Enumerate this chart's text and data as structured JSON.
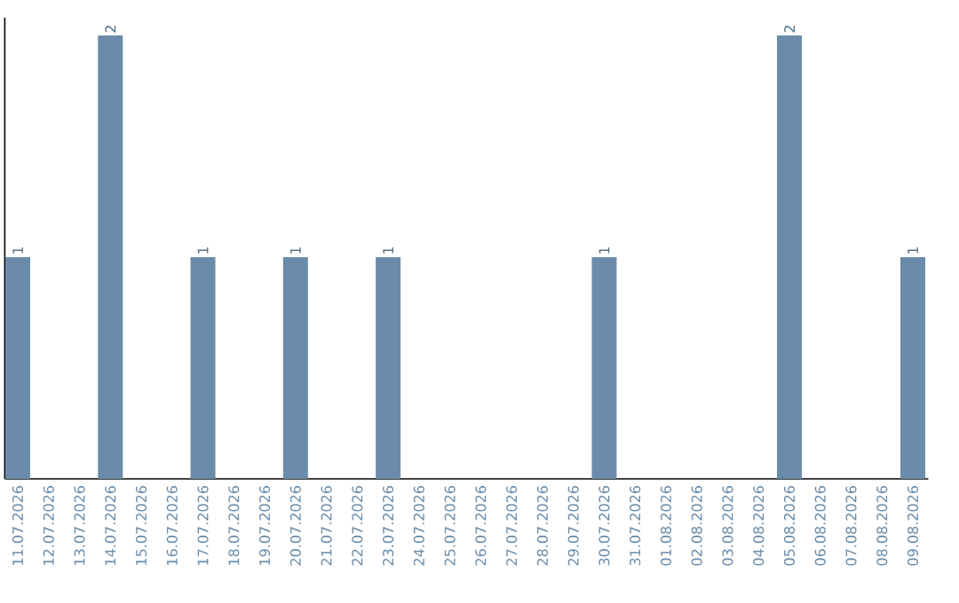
{
  "chart_data": {
    "type": "bar",
    "categories": [
      "11.07.2026",
      "12.07.2026",
      "13.07.2026",
      "14.07.2026",
      "15.07.2026",
      "16.07.2026",
      "17.07.2026",
      "18.07.2026",
      "19.07.2026",
      "20.07.2026",
      "21.07.2026",
      "22.07.2026",
      "23.07.2026",
      "24.07.2026",
      "25.07.2026",
      "26.07.2026",
      "27.07.2026",
      "28.07.2026",
      "29.07.2026",
      "30.07.2026",
      "31.07.2026",
      "01.08.2026",
      "02.08.2026",
      "03.08.2026",
      "04.08.2026",
      "05.08.2026",
      "06.08.2026",
      "07.08.2026",
      "08.08.2026",
      "09.08.2026"
    ],
    "values": [
      1,
      0,
      0,
      2,
      0,
      0,
      1,
      0,
      0,
      1,
      0,
      0,
      1,
      0,
      0,
      0,
      0,
      0,
      0,
      1,
      0,
      0,
      0,
      0,
      0,
      2,
      0,
      0,
      0,
      1
    ],
    "value_labels": [
      "1",
      null,
      null,
      "2",
      null,
      null,
      "1",
      null,
      null,
      "1",
      null,
      null,
      "1",
      null,
      null,
      null,
      null,
      null,
      null,
      "1",
      null,
      null,
      null,
      null,
      null,
      "2",
      null,
      null,
      null,
      "1"
    ],
    "color": "#6a8caa",
    "ylim": [
      0,
      2.08
    ]
  }
}
